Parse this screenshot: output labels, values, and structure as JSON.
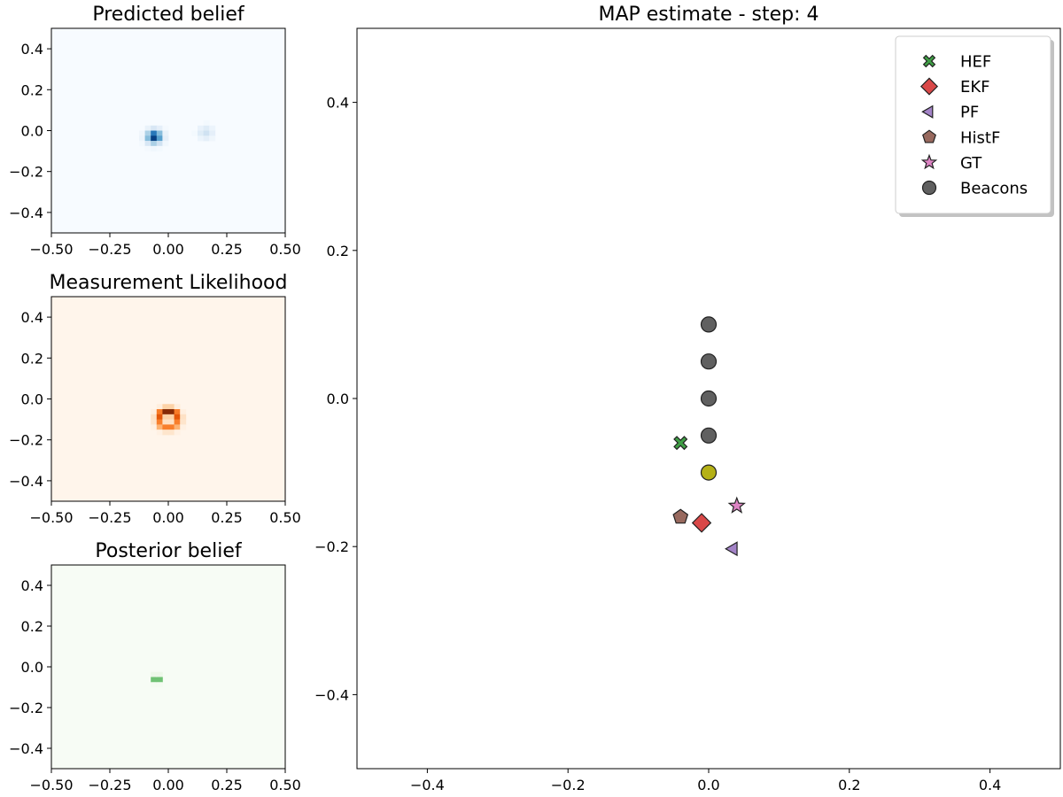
{
  "figure": {
    "background": "#ffffff"
  },
  "chart_data": [
    {
      "id": "predicted",
      "type": "heatmap",
      "title": "Predicted belief",
      "xlim": [
        -0.5,
        0.5
      ],
      "ylim": [
        -0.5,
        0.5
      ],
      "xticks": [
        -0.5,
        -0.25,
        0.0,
        0.25,
        0.5
      ],
      "xtick_labels": [
        "−0.50",
        "−0.25",
        "0.00",
        "0.25",
        "0.50"
      ],
      "yticks": [
        -0.4,
        -0.2,
        0.0,
        0.2,
        0.4
      ],
      "ytick_labels": [
        "−0.4",
        "−0.2",
        "0.0",
        "0.2",
        "0.4"
      ],
      "colormap": "Blues",
      "background_color": "#f7fbff",
      "grid_size": 40,
      "blobs": [
        {
          "shape": "gaussian",
          "x": -0.06,
          "y": -0.03,
          "sigma": 0.022,
          "peak": 1.0
        },
        {
          "shape": "gaussian",
          "x": 0.16,
          "y": -0.01,
          "sigma": 0.022,
          "peak": 0.2
        }
      ]
    },
    {
      "id": "likelihood",
      "type": "heatmap",
      "title": "Measurement Likelihood",
      "xlim": [
        -0.5,
        0.5
      ],
      "ylim": [
        -0.5,
        0.5
      ],
      "xticks": [
        -0.5,
        -0.25,
        0.0,
        0.25,
        0.5
      ],
      "xtick_labels": [
        "−0.50",
        "−0.25",
        "0.00",
        "0.25",
        "0.50"
      ],
      "yticks": [
        -0.4,
        -0.2,
        0.0,
        0.2,
        0.4
      ],
      "ytick_labels": [
        "−0.4",
        "−0.2",
        "0.0",
        "0.2",
        "0.4"
      ],
      "colormap": "Oranges",
      "background_color": "#fff5eb",
      "grid_size": 40,
      "blobs": [
        {
          "shape": "ring",
          "x": 0.0,
          "y": -0.1,
          "radius": 0.04,
          "width": 0.014,
          "peak": 1.0
        }
      ]
    },
    {
      "id": "posterior",
      "type": "heatmap",
      "title": "Posterior belief",
      "xlim": [
        -0.5,
        0.5
      ],
      "ylim": [
        -0.5,
        0.5
      ],
      "xticks": [
        -0.5,
        -0.25,
        0.0,
        0.25,
        0.5
      ],
      "xtick_labels": [
        "−0.50",
        "−0.25",
        "0.00",
        "0.25",
        "0.50"
      ],
      "yticks": [
        -0.4,
        -0.2,
        0.0,
        0.2,
        0.4
      ],
      "ytick_labels": [
        "−0.4",
        "−0.2",
        "0.0",
        "0.2",
        "0.4"
      ],
      "colormap": "Greens",
      "background_color": "#f7fcf5",
      "grid_size": 40,
      "blobs": [
        {
          "shape": "gaussian",
          "x": -0.05,
          "y": -0.06,
          "sigma": 0.011,
          "peak": 1.0
        }
      ]
    },
    {
      "id": "map",
      "type": "scatter",
      "title": "MAP estimate - step: 4",
      "xlim": [
        -0.5,
        0.5
      ],
      "ylim": [
        -0.5,
        0.5
      ],
      "xticks": [
        -0.4,
        -0.2,
        0.0,
        0.2,
        0.4
      ],
      "xtick_labels": [
        "−0.4",
        "−0.2",
        "0.0",
        "0.2",
        "0.4"
      ],
      "yticks": [
        -0.4,
        -0.2,
        0.0,
        0.2,
        0.4
      ],
      "ytick_labels": [
        "−0.4",
        "−0.2",
        "0.0",
        "0.2",
        "0.4"
      ],
      "legend_position": "top-right",
      "series": [
        {
          "name": "HEF",
          "marker": "x",
          "color": "#3f9e45",
          "points": [
            {
              "x": -0.04,
              "y": -0.06
            }
          ]
        },
        {
          "name": "EKF",
          "marker": "diamond",
          "color": "#d94848",
          "points": [
            {
              "x": -0.01,
              "y": -0.168
            }
          ]
        },
        {
          "name": "PF",
          "marker": "triangle-left",
          "color": "#a383c7",
          "points": [
            {
              "x": 0.035,
              "y": -0.203
            }
          ]
        },
        {
          "name": "HistF",
          "marker": "pentagon",
          "color": "#98695e",
          "points": [
            {
              "x": -0.04,
              "y": -0.16
            }
          ]
        },
        {
          "name": "GT",
          "marker": "star",
          "color": "#dd84c4",
          "points": [
            {
              "x": 0.04,
              "y": -0.145
            }
          ]
        },
        {
          "name": "Beacons",
          "marker": "circle",
          "color": "#606060",
          "points": [
            {
              "x": 0.0,
              "y": 0.1
            },
            {
              "x": 0.0,
              "y": 0.05
            },
            {
              "x": 0.0,
              "y": 0.0
            },
            {
              "x": 0.0,
              "y": -0.05
            }
          ]
        }
      ],
      "highlighted_beacon": {
        "marker": "circle",
        "color": "#b5b116",
        "x": 0.0,
        "y": -0.1
      }
    }
  ]
}
